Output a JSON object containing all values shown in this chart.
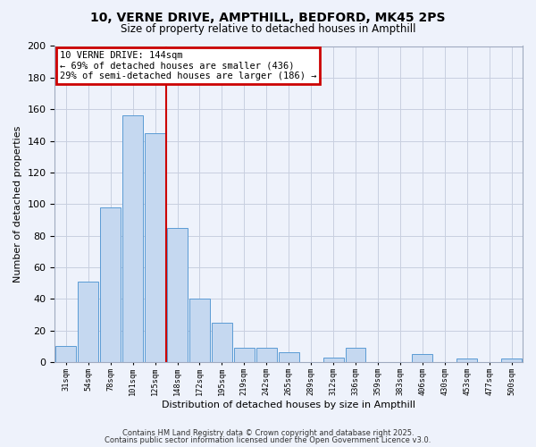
{
  "title": "10, VERNE DRIVE, AMPTHILL, BEDFORD, MK45 2PS",
  "subtitle": "Size of property relative to detached houses in Ampthill",
  "xlabel": "Distribution of detached houses by size in Ampthill",
  "ylabel": "Number of detached properties",
  "bin_labels": [
    "31sqm",
    "54sqm",
    "78sqm",
    "101sqm",
    "125sqm",
    "148sqm",
    "172sqm",
    "195sqm",
    "219sqm",
    "242sqm",
    "265sqm",
    "289sqm",
    "312sqm",
    "336sqm",
    "359sqm",
    "383sqm",
    "406sqm",
    "430sqm",
    "453sqm",
    "477sqm",
    "500sqm"
  ],
  "bar_values": [
    10,
    51,
    98,
    156,
    145,
    85,
    40,
    25,
    9,
    9,
    6,
    0,
    3,
    9,
    0,
    0,
    5,
    0,
    2,
    0,
    2
  ],
  "bar_color": "#c5d8f0",
  "bar_edgecolor": "#5b9bd5",
  "vline_color": "#cc0000",
  "annotation_line1": "10 VERNE DRIVE: 144sqm",
  "annotation_line2": "← 69% of detached houses are smaller (436)",
  "annotation_line3": "29% of semi-detached houses are larger (186) →",
  "annotation_box_edgecolor": "#cc0000",
  "ylim": [
    0,
    200
  ],
  "yticks": [
    0,
    20,
    40,
    60,
    80,
    100,
    120,
    140,
    160,
    180,
    200
  ],
  "grid_color": "#c8cfe0",
  "bg_color": "#eef2fb",
  "footer_line1": "Contains HM Land Registry data © Crown copyright and database right 2025.",
  "footer_line2": "Contains public sector information licensed under the Open Government Licence v3.0."
}
